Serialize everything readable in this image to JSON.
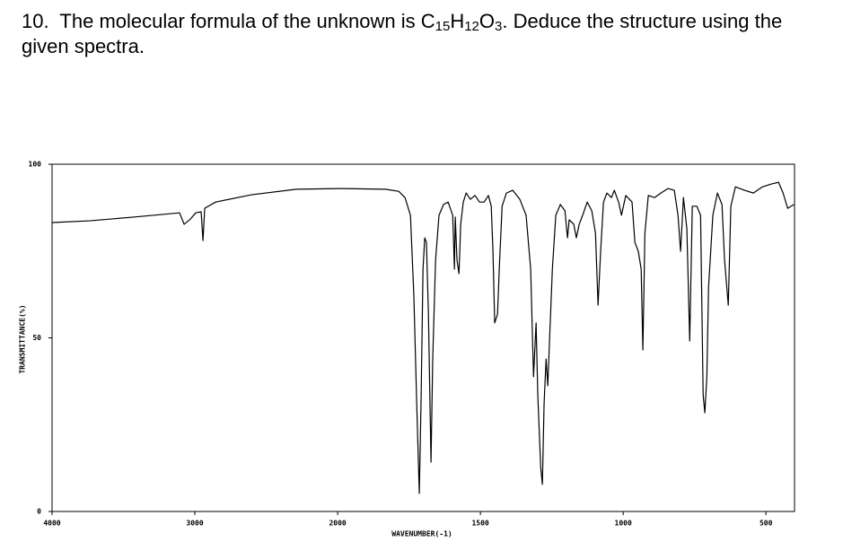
{
  "question": {
    "number": "10.",
    "lead": "The molecular formula of the unknown is",
    "formula": [
      {
        "symbol": "C",
        "count": "15"
      },
      {
        "symbol": "H",
        "count": "12"
      },
      {
        "symbol": "O",
        "count": "3"
      }
    ],
    "trail": ".  Deduce the structure using the given spectra."
  },
  "chart_data": {
    "type": "line",
    "x_label": "WAVENUMBER(-1)",
    "y_label": "TRANSMITTANCE(%)",
    "color": "#000000",
    "xlim": [
      4000,
      400
    ],
    "xticks": [
      4000,
      3000,
      2000,
      1500,
      1000,
      500
    ],
    "ylim": [
      0,
      100
    ],
    "yticks": [
      0,
      50,
      100
    ],
    "x": [
      4000,
      3736,
      3421,
      3107,
      3075,
      3031,
      2994,
      2956,
      2943,
      2931,
      2855,
      2604,
      2289,
      1991,
      1833,
      1786,
      1764,
      1745,
      1733,
      1723,
      1714,
      1708,
      1701,
      1695,
      1689,
      1682,
      1673,
      1667,
      1657,
      1645,
      1629,
      1613,
      1597,
      1591,
      1588,
      1582,
      1575,
      1569,
      1560,
      1550,
      1535,
      1519,
      1503,
      1487,
      1472,
      1462,
      1456,
      1450,
      1440,
      1434,
      1424,
      1409,
      1387,
      1362,
      1340,
      1324,
      1314,
      1305,
      1299,
      1289,
      1283,
      1277,
      1270,
      1264,
      1258,
      1248,
      1236,
      1220,
      1204,
      1195,
      1189,
      1173,
      1164,
      1154,
      1142,
      1126,
      1110,
      1097,
      1088,
      1079,
      1069,
      1057,
      1041,
      1031,
      1016,
      1006,
      991,
      969,
      959,
      947,
      937,
      931,
      924,
      912,
      890,
      868,
      843,
      821,
      808,
      799,
      789,
      777,
      767,
      758,
      742,
      729,
      720,
      714,
      707,
      701,
      686,
      670,
      654,
      645,
      632,
      623,
      607,
      575,
      544,
      512,
      481,
      456,
      440,
      424,
      402
    ],
    "values": [
      83.2,
      83.7,
      84.8,
      86.0,
      82.7,
      84.2,
      86.0,
      86.3,
      78.0,
      87.3,
      89.1,
      91.2,
      92.8,
      93.0,
      92.8,
      92.2,
      90.4,
      85.3,
      62.0,
      31.0,
      5.2,
      31.0,
      69.8,
      78.8,
      77.5,
      56.8,
      14.2,
      43.9,
      72.4,
      85.3,
      88.4,
      89.1,
      85.3,
      69.8,
      84.8,
      72.4,
      68.5,
      82.7,
      89.1,
      91.7,
      89.9,
      91.0,
      89.1,
      89.1,
      91.0,
      87.9,
      74.9,
      54.3,
      56.8,
      69.8,
      87.9,
      91.7,
      92.5,
      89.9,
      85.3,
      69.8,
      38.8,
      54.3,
      33.6,
      12.9,
      7.8,
      31.0,
      43.9,
      36.2,
      49.1,
      69.8,
      85.3,
      88.4,
      86.6,
      78.8,
      84.0,
      82.7,
      78.8,
      82.7,
      85.3,
      89.1,
      86.6,
      80.1,
      59.4,
      74.9,
      89.1,
      91.7,
      90.4,
      92.5,
      89.1,
      85.3,
      91.0,
      89.1,
      77.5,
      74.9,
      69.8,
      46.5,
      80.1,
      91.0,
      90.4,
      91.7,
      93.0,
      92.5,
      85.3,
      74.9,
      90.4,
      81.4,
      49.1,
      87.9,
      87.9,
      85.3,
      33.6,
      28.4,
      38.8,
      64.6,
      85.3,
      91.7,
      88.4,
      72.4,
      59.4,
      87.9,
      93.5,
      92.5,
      91.7,
      93.5,
      94.3,
      94.8,
      91.7,
      87.3,
      88.4
    ]
  }
}
